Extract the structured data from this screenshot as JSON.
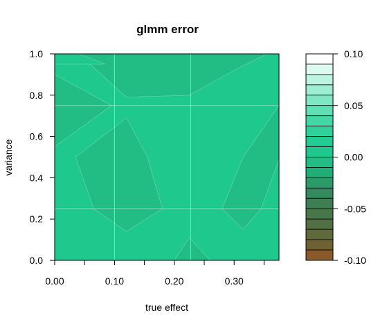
{
  "chart_data": {
    "type": "contour",
    "title": "glmm error",
    "xlabel": "true effect",
    "ylabel": "variance",
    "xlim": [
      0.0,
      0.375
    ],
    "ylim": [
      0.0,
      1.0
    ],
    "x_ticks": [
      {
        "value": 0.0,
        "label": "0.00"
      },
      {
        "value": 0.05,
        "label": ""
      },
      {
        "value": 0.1,
        "label": "0.10"
      },
      {
        "value": 0.15,
        "label": ""
      },
      {
        "value": 0.2,
        "label": "0.20"
      },
      {
        "value": 0.25,
        "label": ""
      },
      {
        "value": 0.3,
        "label": "0.30"
      },
      {
        "value": 0.35,
        "label": ""
      }
    ],
    "y_ticks": [
      {
        "value": 0.0,
        "label": "0.0"
      },
      {
        "value": 0.2,
        "label": "0.2"
      },
      {
        "value": 0.4,
        "label": "0.4"
      },
      {
        "value": 0.6,
        "label": "0.6"
      },
      {
        "value": 0.8,
        "label": "0.8"
      },
      {
        "value": 1.0,
        "label": "1.0"
      }
    ],
    "grid": true,
    "grid_x": [
      0.1,
      0.2275
    ],
    "grid_y": [
      0.25,
      0.75
    ],
    "background_color": "#1fc98e",
    "regions": [
      {
        "color": "#21bd84",
        "points": [
          [
            0,
            1
          ],
          [
            0.04,
            1
          ],
          [
            0.12,
            0.79
          ],
          [
            0.225,
            0.8
          ],
          [
            0.3,
            0.92
          ],
          [
            0.355,
            1
          ],
          [
            0.0,
            1
          ]
        ]
      },
      {
        "color": "#1fc98e",
        "points": [
          [
            0.0,
            1
          ],
          [
            0.04,
            1
          ],
          [
            0.085,
            0.95
          ],
          [
            0.0,
            0.95
          ]
        ]
      },
      {
        "color": "#21bd84",
        "points": [
          [
            0,
            0.9
          ],
          [
            0.095,
            0.75
          ],
          [
            0.0,
            0.55
          ]
        ]
      },
      {
        "color": "#21bd84",
        "points": [
          [
            0.035,
            0.5
          ],
          [
            0.12,
            0.69
          ],
          [
            0.155,
            0.5
          ],
          [
            0.18,
            0.25
          ],
          [
            0.12,
            0.14
          ],
          [
            0.065,
            0.25
          ]
        ]
      },
      {
        "color": "#21bd84",
        "points": [
          [
            0.375,
            0.75
          ],
          [
            0.315,
            0.5
          ],
          [
            0.28,
            0.25
          ],
          [
            0.315,
            0.15
          ],
          [
            0.345,
            0.25
          ],
          [
            0.375,
            0.49
          ]
        ]
      },
      {
        "color": "#21bd84",
        "points": [
          [
            0.2,
            0.0
          ],
          [
            0.225,
            0.11
          ],
          [
            0.26,
            0.0
          ]
        ]
      }
    ],
    "colorbar": {
      "min": -0.1,
      "max": 0.1,
      "ticks": [
        {
          "value": 0.1,
          "label": "0.10"
        },
        {
          "value": 0.05,
          "label": "0.05"
        },
        {
          "value": 0.0,
          "label": "0.00"
        },
        {
          "value": -0.05,
          "label": "-0.05"
        },
        {
          "value": -0.1,
          "label": "-0.10"
        }
      ],
      "levels": [
        {
          "from": 0.09,
          "to": 0.1,
          "color": "#ffffff"
        },
        {
          "from": 0.08,
          "to": 0.09,
          "color": "#ddfaf0"
        },
        {
          "from": 0.07,
          "to": 0.08,
          "color": "#bdf3e1"
        },
        {
          "from": 0.06,
          "to": 0.07,
          "color": "#9eeed4"
        },
        {
          "from": 0.05,
          "to": 0.06,
          "color": "#7ee8c5"
        },
        {
          "from": 0.04,
          "to": 0.05,
          "color": "#5fe0b5"
        },
        {
          "from": 0.03,
          "to": 0.04,
          "color": "#44d7a6"
        },
        {
          "from": 0.02,
          "to": 0.03,
          "color": "#30d09b"
        },
        {
          "from": 0.01,
          "to": 0.02,
          "color": "#22cc93"
        },
        {
          "from": 0.0,
          "to": 0.01,
          "color": "#1fc98e"
        },
        {
          "from": -0.01,
          "to": 0.0,
          "color": "#21bd84"
        },
        {
          "from": -0.02,
          "to": -0.01,
          "color": "#25ab76"
        },
        {
          "from": -0.03,
          "to": -0.02,
          "color": "#2c9a69"
        },
        {
          "from": -0.04,
          "to": -0.03,
          "color": "#348a5e"
        },
        {
          "from": -0.05,
          "to": -0.04,
          "color": "#3d7f53"
        },
        {
          "from": -0.06,
          "to": -0.05,
          "color": "#47774b"
        },
        {
          "from": -0.07,
          "to": -0.06,
          "color": "#537044"
        },
        {
          "from": -0.08,
          "to": -0.07,
          "color": "#60693c"
        },
        {
          "from": -0.09,
          "to": -0.08,
          "color": "#6e6133"
        },
        {
          "from": -0.1,
          "to": -0.09,
          "color": "#8b5a2b"
        }
      ]
    }
  }
}
